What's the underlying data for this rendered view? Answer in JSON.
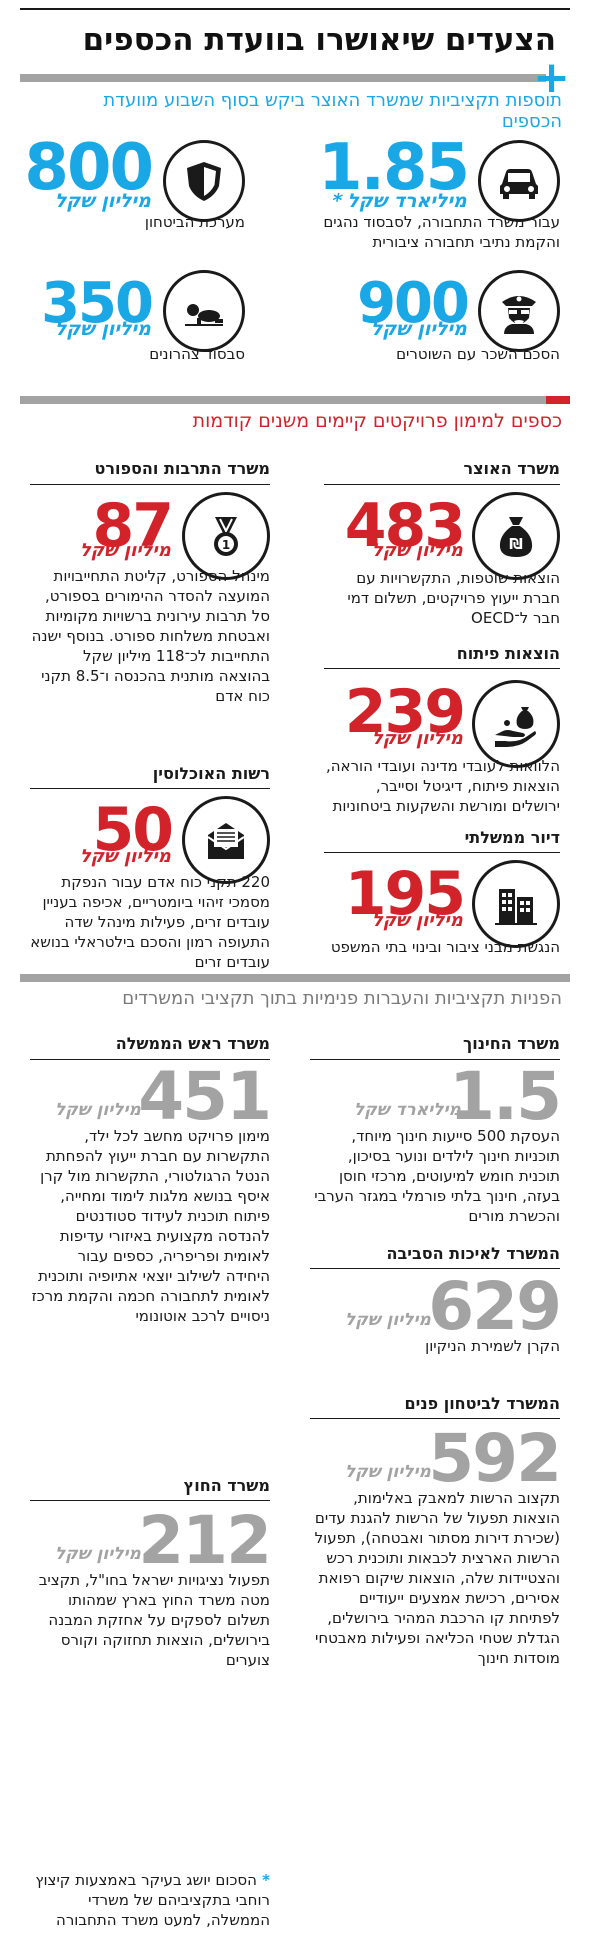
{
  "title": "הצעדים שיאושרו בוועדת הכספים",
  "colors": {
    "blue": "#1aa7e6",
    "red": "#d2232a",
    "gray": "#a3a3a3",
    "text": "#1a1a1a"
  },
  "section1": {
    "heading": "תוספות תקציביות שמשרד האוצר ביקש בסוף השבוע מוועדת הכספים",
    "items": [
      {
        "icon": "car-icon",
        "number": "1.85",
        "unit": "מיליארד שקל *",
        "desc": "עבור משרד התחבורה, לסבסוד נהגים והקמת נתיבי תחבורה ציבורית"
      },
      {
        "icon": "shield-icon",
        "number": "800",
        "unit": "מיליון שקל",
        "desc": "מערכת הביטחון"
      },
      {
        "icon": "police-officer-icon",
        "number": "900",
        "unit": "מיליון שקל",
        "desc": "הסכם השכר עם השוטרים"
      },
      {
        "icon": "crawling-baby-icon",
        "number": "350",
        "unit": "מיליון שקל",
        "desc": "סבסוד צהרונים"
      }
    ]
  },
  "section2": {
    "heading": "כספים למימון פרויקטים קיימים משנים קודמות",
    "items": [
      {
        "section": "משרד האוצר",
        "icon": "money-bag-icon",
        "number": "483",
        "unit": "מיליון שקל",
        "desc": "הוצאות שוטפות, התקשרויות עם חברת ייעוץ פרויקטים, תשלום דמי חבר ל־OECD"
      },
      {
        "section": "משרד התרבות והספורט",
        "icon": "medal-icon",
        "number": "87",
        "unit": "מיליון שקל",
        "desc": "מינהל הספורט, קליטת התחייבויות המועצה להסדר ההימורים בספורט, סל תרבות עירונית ברשויות מקומיות ואבטחת משלחות ספורט. בנוסף ישנה התחייבות לכ־118 מיליון שקל בהוצאה מותנית בהכנסה ו־8.5 תקני כוח אדם"
      },
      {
        "section": "הוצאות פיתוח",
        "icon": "hand-coin-bag-icon",
        "number": "239",
        "unit": "מיליון שקל",
        "desc": "הלוואות לעובדי מדינה ועובדי הוראה, הוצאות פיתוח, דיגיטל וסייבר, ירושלים ומורשת והשקעות ביטחוניות"
      },
      {
        "section": "רשות האוכלוסין",
        "icon": "envelope-icon",
        "number": "50",
        "unit": "מיליון שקל",
        "desc": "220 תקני כוח אדם עבור הנפקת מסמכי זיהוי ביומטריים, אכיפה בעניין עובדים זרים, פעילות מינהל שדה התעופה רמון והסכם בילטראלי בנושא עובדים זרים"
      },
      {
        "section": "דיור ממשלתי",
        "icon": "buildings-icon",
        "number": "195",
        "unit": "מיליון שקל",
        "desc": "הנגשת מבני ציבור ובינוי בתי המשפט"
      }
    ]
  },
  "section3": {
    "heading": "הפניות תקציביות והעברות פנימיות בתוך תקציבי המשרדים",
    "items": [
      {
        "section": "משרד החינוך",
        "number": "1.5",
        "unit": "מיליארד שקל",
        "desc": "העסקת 500 סייעות חינוך מיוחד, תוכניות חינוך לילדים ונוער בסיכון, תוכנית חומש למיעוטים, מרכזי חוסן בעזה, חינוך בלתי פורמלי במגזר הערבי והכשרת מורים"
      },
      {
        "section": "משרד ראש הממשלה",
        "number": "451",
        "unit": "מיליון שקל",
        "desc": "מימון פרויקט מחשב לכל ילד, התקשרות עם חברת ייעוץ להפחתת הנטל הרגולטורי, התקשרות מול קרן איסף בנושא מלגות לימוד ומחייה, פיתוח תוכנית לעידוד סטודנטים להנדסה מקצועית באיזורי עדיפות לאומית ופריפריה, כספים עבור היחידה לשילוב יוצאי אתיופיה ותוכנית לאומית לתחבורה חכמה והקמת מרכז ניסויים לרכב אוטונומי"
      },
      {
        "section": "המשרד לאיכות הסביבה",
        "number": "629",
        "unit": "מיליון שקל",
        "desc": "הקרן לשמירת הניקיון"
      },
      {
        "section": "משרד החוץ",
        "number": "212",
        "unit": "מיליון שקל",
        "desc": "תפעול נציגויות ישראל בחו\"ל, תקציב מטה משרד החוץ בארץ שמהותו תשלום לספקים על אחזקת המבנה בירושלים, הוצאות תחזוקה וקורס צוערים"
      },
      {
        "section": "המשרד לביטחון פנים",
        "number": "592",
        "unit": "מיליון שקל",
        "desc": "תקצוב הרשות למאבק באלימות, הוצאות תפעול של הרשות להגנת עדים (שכירת דירות מסתור ואבטחה), תפעול הרשות הארצית לכבאות ותוכנית רכש והצטיידות שלה, הוצאות שיקום רפואת אסירים, רכישת אמצעים ייעודיים לפתיחת קו הרכבת המהיר בירושלים, הגדלת שטחי הכליאה ופעילות מאבטחי מוסדות חינוך"
      }
    ]
  },
  "footnote": "הסכום יושג בעיקר באמצעות קיצוץ רוחבי בתקציביהם של משרדי הממשלה, למעט משרד התחבורה"
}
